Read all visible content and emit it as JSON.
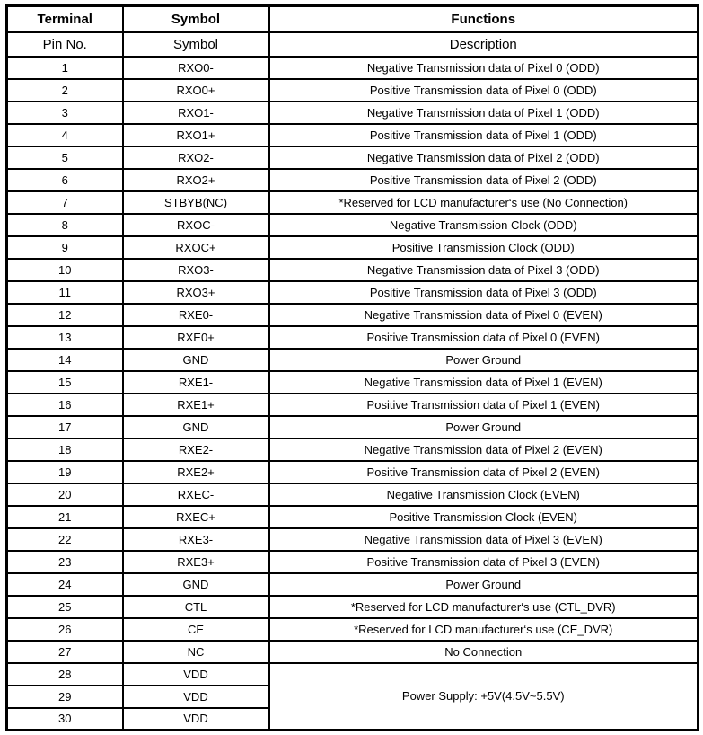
{
  "table": {
    "header_row1": {
      "terminal": "Terminal",
      "symbol": "Symbol",
      "functions": "Functions"
    },
    "header_row2": {
      "terminal": "Pin No.",
      "symbol": "Symbol",
      "functions": "Description"
    },
    "rows": [
      {
        "pin": "1",
        "symbol": "RXO0-",
        "description": "Negative Transmission data of Pixel 0 (ODD)"
      },
      {
        "pin": "2",
        "symbol": "RXO0+",
        "description": "Positive Transmission data of Pixel 0 (ODD)"
      },
      {
        "pin": "3",
        "symbol": "RXO1-",
        "description": "Negative Transmission data of Pixel 1 (ODD)"
      },
      {
        "pin": "4",
        "symbol": "RXO1+",
        "description": "Positive Transmission data of Pixel 1 (ODD)"
      },
      {
        "pin": "5",
        "symbol": "RXO2-",
        "description": "Negative Transmission data of Pixel 2 (ODD)"
      },
      {
        "pin": "6",
        "symbol": "RXO2+",
        "description": "Positive Transmission data of Pixel 2 (ODD)"
      },
      {
        "pin": "7",
        "symbol": "STBYB(NC)",
        "description": "*Reserved for LCD manufacturer‘s use (No Connection)"
      },
      {
        "pin": "8",
        "symbol": "RXOC-",
        "description": "Negative Transmission Clock (ODD)"
      },
      {
        "pin": "9",
        "symbol": "RXOC+",
        "description": "Positive Transmission Clock (ODD)"
      },
      {
        "pin": "10",
        "symbol": "RXO3-",
        "description": "Negative Transmission data of Pixel 3 (ODD)"
      },
      {
        "pin": "11",
        "symbol": "RXO3+",
        "description": "Positive Transmission data of Pixel 3 (ODD)"
      },
      {
        "pin": "12",
        "symbol": "RXE0-",
        "description": "Negative Transmission data of Pixel 0 (EVEN)"
      },
      {
        "pin": "13",
        "symbol": "RXE0+",
        "description": "Positive Transmission data of Pixel 0 (EVEN)"
      },
      {
        "pin": "14",
        "symbol": "GND",
        "description": "Power Ground"
      },
      {
        "pin": "15",
        "symbol": "RXE1-",
        "description": "Negative Transmission data of Pixel 1 (EVEN)"
      },
      {
        "pin": "16",
        "symbol": "RXE1+",
        "description": "Positive Transmission data of Pixel 1 (EVEN)"
      },
      {
        "pin": "17",
        "symbol": "GND",
        "description": "Power Ground"
      },
      {
        "pin": "18",
        "symbol": "RXE2-",
        "description": "Negative Transmission data of Pixel 2 (EVEN)"
      },
      {
        "pin": "19",
        "symbol": "RXE2+",
        "description": "Positive Transmission data of Pixel 2 (EVEN)"
      },
      {
        "pin": "20",
        "symbol": "RXEC-",
        "description": "Negative Transmission Clock (EVEN)"
      },
      {
        "pin": "21",
        "symbol": "RXEC+",
        "description": "Positive Transmission Clock (EVEN)"
      },
      {
        "pin": "22",
        "symbol": "RXE3-",
        "description": "Negative Transmission data of Pixel 3 (EVEN)"
      },
      {
        "pin": "23",
        "symbol": "RXE3+",
        "description": "Positive Transmission data of Pixel 3 (EVEN)"
      },
      {
        "pin": "24",
        "symbol": "GND",
        "description": "Power Ground"
      },
      {
        "pin": "25",
        "symbol": "CTL",
        "description": "*Reserved for LCD manufacturer‘s use (CTL_DVR)"
      },
      {
        "pin": "26",
        "symbol": "CE",
        "description": "*Reserved for LCD manufacturer‘s use (CE_DVR)"
      },
      {
        "pin": "27",
        "symbol": "NC",
        "description": "No Connection"
      },
      {
        "pin": "28",
        "symbol": "VDD",
        "description": "Power Supply: +5V(4.5V~5.5V)"
      },
      {
        "pin": "29",
        "symbol": "VDD"
      },
      {
        "pin": "30",
        "symbol": "VDD"
      }
    ]
  },
  "colors": {
    "border": "#000000",
    "text": "#000000",
    "background": "#ffffff"
  }
}
